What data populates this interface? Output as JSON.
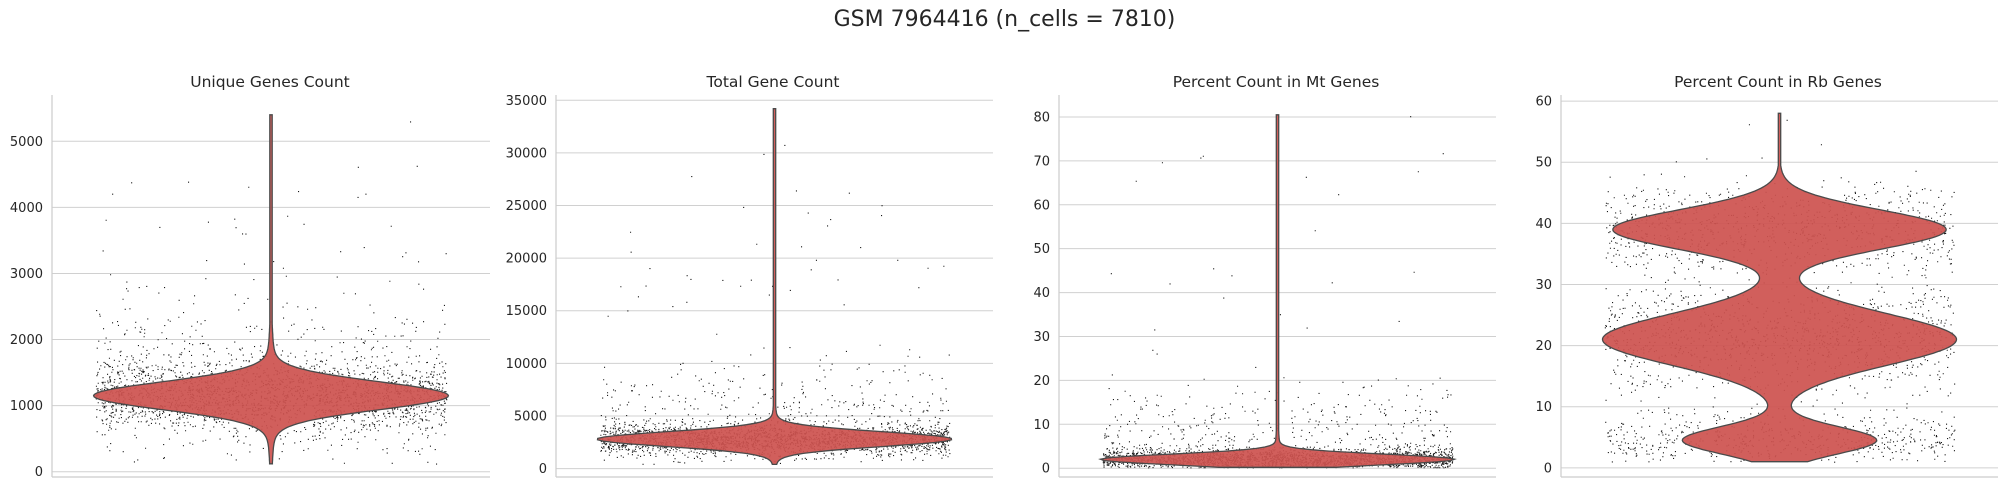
{
  "figure": {
    "suptitle": "GSM 7964416 (n_cells = 7810)",
    "violin_fill": "#cd5350",
    "violin_stroke": "#4a4a4a",
    "point_color": "#000000",
    "grid_color": "#d0d0d0"
  },
  "chart_data": [
    {
      "type": "violin",
      "title": "Unique Genes Count",
      "ylim": [
        -80,
        5700
      ],
      "yticks": [
        0,
        1000,
        2000,
        3000,
        4000,
        5000
      ],
      "grid": true,
      "distribution": {
        "min": 120,
        "max": 5400,
        "modes": [
          1150
        ],
        "median": 1150
      }
    },
    {
      "type": "violin",
      "title": "Total Gene Count",
      "ylim": [
        -800,
        35500
      ],
      "yticks": [
        0,
        5000,
        10000,
        15000,
        20000,
        25000,
        30000,
        35000
      ],
      "grid": true,
      "distribution": {
        "min": 400,
        "max": 34200,
        "modes": [
          2800
        ],
        "median": 2800
      }
    },
    {
      "type": "violin",
      "title": "Percent Count in Mt Genes",
      "ylim": [
        -2,
        85
      ],
      "yticks": [
        0,
        10,
        20,
        30,
        40,
        50,
        60,
        70,
        80
      ],
      "grid": true,
      "distribution": {
        "min": 0.2,
        "max": 80.5,
        "modes": [
          2
        ],
        "median": 2
      }
    },
    {
      "type": "violin",
      "title": "Percent Count in Rb Genes",
      "ylim": [
        -1.5,
        61
      ],
      "yticks": [
        0,
        10,
        20,
        30,
        40,
        50,
        60
      ],
      "grid": true,
      "distribution": {
        "min": 1,
        "max": 58,
        "modes": [
          4.5,
          21,
          39
        ],
        "median": 22
      }
    }
  ]
}
